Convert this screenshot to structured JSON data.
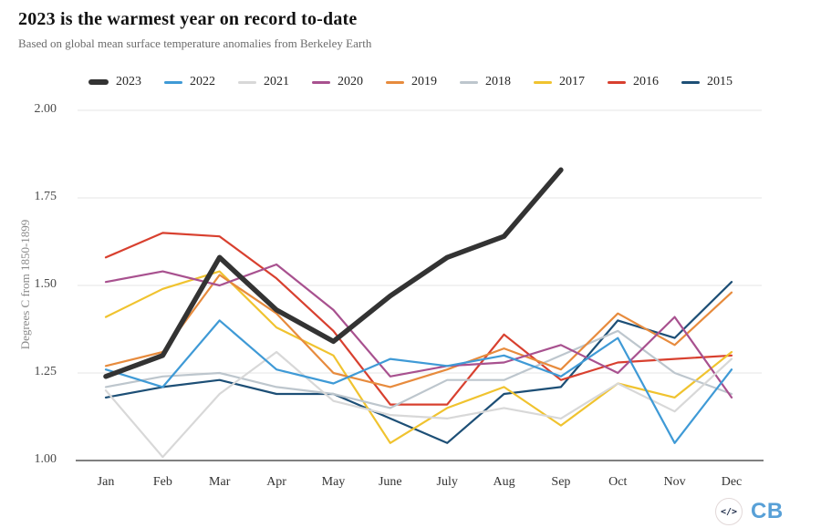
{
  "header": {
    "title": "2023 is the warmest year on record to-date",
    "subtitle": "Based on global mean surface temperature anomalies from Berkeley Earth"
  },
  "y_axis": {
    "label": "Degrees C from 1850-1899",
    "ticks": [
      "2.00",
      "1.75",
      "1.50",
      "1.25",
      "1.00"
    ]
  },
  "chart_data": {
    "type": "line",
    "title": "2023 is the warmest year on record to-date",
    "subtitle": "Based on global mean surface temperature anomalies from Berkeley Earth",
    "xlabel": "",
    "ylabel": "Degrees C from 1850-1899",
    "ylim": [
      1.0,
      2.0
    ],
    "ytick_step": 0.25,
    "grid": true,
    "legend_position": "top",
    "categories": [
      "Jan",
      "Feb",
      "Mar",
      "Apr",
      "May",
      "June",
      "July",
      "Aug",
      "Sep",
      "Oct",
      "Nov",
      "Dec"
    ],
    "series": [
      {
        "name": "2023",
        "color": "#333333",
        "thick": true,
        "values": [
          1.24,
          1.3,
          1.58,
          1.43,
          1.34,
          1.47,
          1.58,
          1.64,
          1.83
        ]
      },
      {
        "name": "2022",
        "color": "#3f9ad6",
        "thick": false,
        "values": [
          1.26,
          1.21,
          1.4,
          1.26,
          1.22,
          1.29,
          1.27,
          1.3,
          1.24,
          1.35,
          1.05,
          1.26
        ]
      },
      {
        "name": "2021",
        "color": "#d8d8d8",
        "thick": false,
        "values": [
          1.2,
          1.01,
          1.19,
          1.31,
          1.17,
          1.13,
          1.12,
          1.15,
          1.12,
          1.22,
          1.14,
          1.29
        ]
      },
      {
        "name": "2020",
        "color": "#a8518f",
        "thick": false,
        "values": [
          1.51,
          1.54,
          1.5,
          1.56,
          1.43,
          1.24,
          1.27,
          1.28,
          1.33,
          1.25,
          1.41,
          1.18
        ]
      },
      {
        "name": "2019",
        "color": "#e78b3d",
        "thick": false,
        "values": [
          1.27,
          1.31,
          1.53,
          1.42,
          1.25,
          1.21,
          1.26,
          1.32,
          1.26,
          1.42,
          1.33,
          1.48
        ]
      },
      {
        "name": "2018",
        "color": "#bdc6cd",
        "thick": false,
        "values": [
          1.21,
          1.24,
          1.25,
          1.21,
          1.19,
          1.15,
          1.23,
          1.23,
          1.3,
          1.37,
          1.25,
          1.19
        ]
      },
      {
        "name": "2017",
        "color": "#f0c32f",
        "thick": false,
        "values": [
          1.41,
          1.49,
          1.54,
          1.38,
          1.3,
          1.05,
          1.15,
          1.21,
          1.1,
          1.22,
          1.18,
          1.31
        ]
      },
      {
        "name": "2016",
        "color": "#d8402f",
        "thick": false,
        "values": [
          1.58,
          1.65,
          1.64,
          1.52,
          1.37,
          1.16,
          1.16,
          1.36,
          1.23,
          1.28,
          1.29,
          1.3
        ]
      },
      {
        "name": "2015",
        "color": "#1d4f76",
        "thick": false,
        "values": [
          1.18,
          1.21,
          1.23,
          1.19,
          1.19,
          1.12,
          1.05,
          1.19,
          1.21,
          1.4,
          1.35,
          1.51
        ]
      }
    ]
  },
  "footer": {
    "logo_code": "</>",
    "logo_text": "CB"
  },
  "colors": {
    "gridline": "#e6e6e6",
    "axis_line": "#808080",
    "accent_blue": "#58a0d7"
  }
}
